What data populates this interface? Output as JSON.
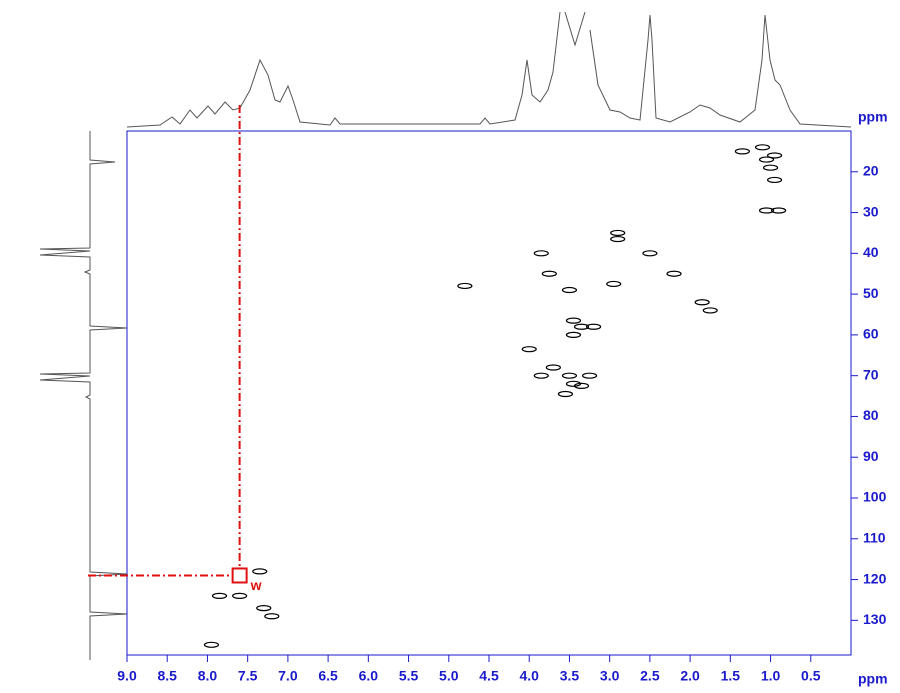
{
  "chart_data": {
    "type": "scatter",
    "x_label": "ppm",
    "y_label": "ppm",
    "xlim": [
      9.0,
      0.0
    ],
    "ylim": [
      10,
      138.5
    ],
    "xticks": [
      {
        "value": 9.0,
        "label": "9.0"
      },
      {
        "value": 8.5,
        "label": "8.5"
      },
      {
        "value": 8.0,
        "label": "8.0"
      },
      {
        "value": 7.5,
        "label": "7.5"
      },
      {
        "value": 7.0,
        "label": "7.0"
      },
      {
        "value": 6.5,
        "label": "6.5"
      },
      {
        "value": 6.0,
        "label": "6.0"
      },
      {
        "value": 5.5,
        "label": "5.5"
      },
      {
        "value": 5.0,
        "label": "5.0"
      },
      {
        "value": 4.5,
        "label": "4.5"
      },
      {
        "value": 4.0,
        "label": "4.0"
      },
      {
        "value": 3.5,
        "label": "3.5"
      },
      {
        "value": 3.0,
        "label": "3.0"
      },
      {
        "value": 2.5,
        "label": "2.5"
      },
      {
        "value": 2.0,
        "label": "2.0"
      },
      {
        "value": 1.5,
        "label": "1.5"
      },
      {
        "value": 1.0,
        "label": "1.0"
      },
      0.5
    ],
    "yticks": [
      20,
      30,
      40,
      50,
      60,
      70,
      80,
      90,
      100,
      110,
      120,
      130
    ],
    "color": "#000000",
    "x": [
      1.1,
      1.35,
      0.95,
      1.05,
      1.0,
      0.95,
      1.05,
      0.9,
      2.9,
      2.9,
      2.5,
      3.85,
      3.75,
      2.2,
      3.5,
      2.95,
      1.85,
      1.75,
      4.8,
      3.45,
      3.35,
      3.2,
      4.0,
      3.45,
      3.7,
      3.5,
      3.85,
      3.25,
      3.45,
      3.35,
      3.55,
      7.35,
      7.85,
      7.6,
      7.3,
      7.2,
      7.95
    ],
    "values": [
      14,
      15,
      16,
      17,
      19,
      22,
      29.5,
      29.5,
      35,
      36.5,
      40,
      40,
      45,
      45,
      49,
      47.5,
      52,
      54,
      48,
      56.5,
      58,
      58,
      63.5,
      60,
      68,
      70,
      70,
      70,
      72,
      72.5,
      74.5,
      118,
      124,
      124,
      127,
      129,
      136
    ],
    "marker": {
      "x": 7.6,
      "y": 119,
      "label": "w",
      "color": "#e01010"
    }
  }
}
